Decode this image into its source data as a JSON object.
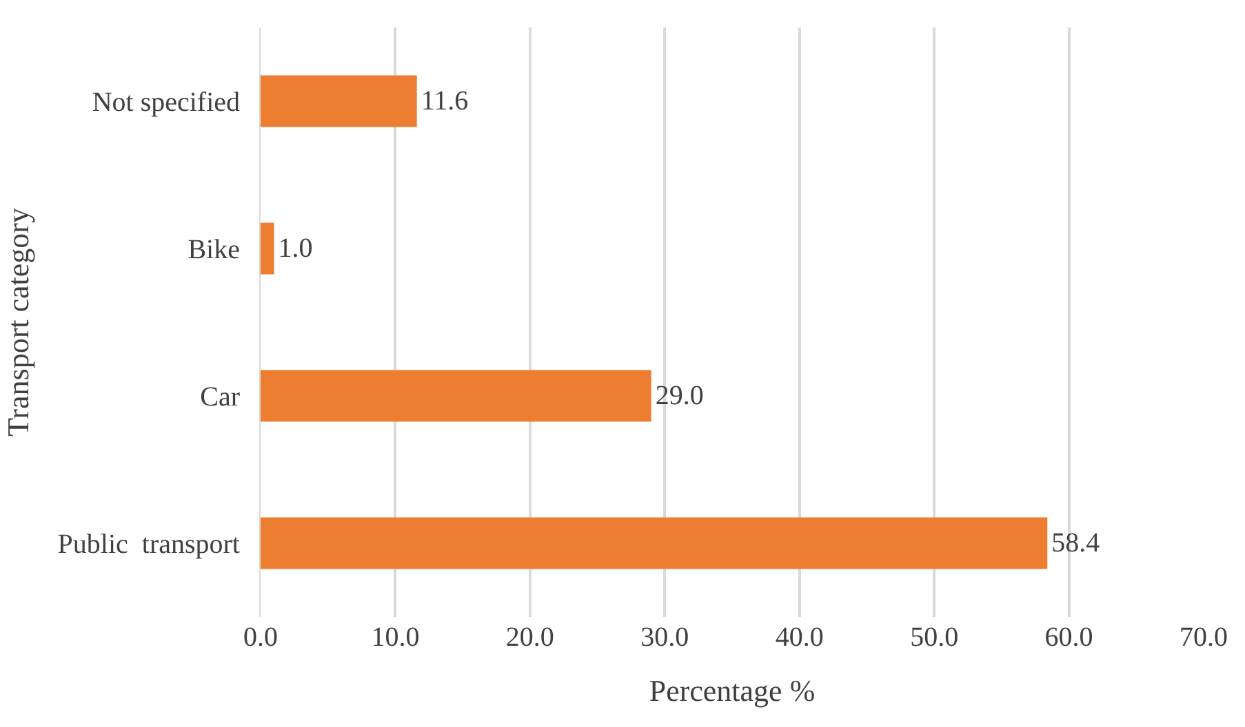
{
  "chart_data": {
    "type": "bar",
    "orientation": "horizontal",
    "xlabel": "Percentage %",
    "ylabel": "Transport category",
    "categories": [
      "Not specified",
      "Bike",
      "Car",
      "Public  transport"
    ],
    "values": [
      11.6,
      1.0,
      29.0,
      58.4
    ],
    "value_labels": [
      "11.6",
      "1.0",
      "29.0",
      "58.4"
    ],
    "color": "#ed7d31",
    "xlim": [
      0,
      70
    ],
    "xticks": [
      {
        "value": 0,
        "label": "0.0"
      },
      {
        "value": 10,
        "label": "10.0"
      },
      {
        "value": 20,
        "label": "20.0"
      },
      {
        "value": 30,
        "label": "30.0"
      },
      {
        "value": 40,
        "label": "40.0"
      },
      {
        "value": 50,
        "label": "50.0"
      },
      {
        "value": 60,
        "label": "60.0"
      },
      {
        "value": 70,
        "label": "70.0"
      }
    ],
    "grid": "x",
    "legend": false
  }
}
